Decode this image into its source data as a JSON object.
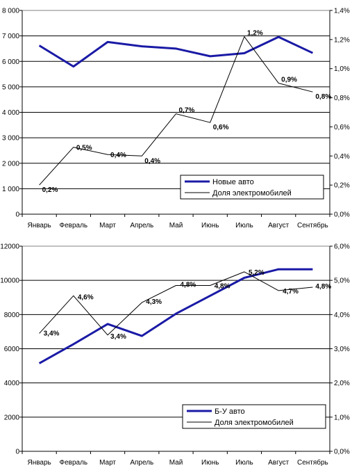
{
  "chart_data": [
    {
      "type": "line",
      "categories": [
        "Январь",
        "Февраль",
        "Март",
        "Апрель",
        "Май",
        "Июнь",
        "Июль",
        "Август",
        "Сентябрь"
      ],
      "ylim_left": [
        0,
        8000
      ],
      "left_ticks": [
        "0",
        "1 000",
        "2 000",
        "3 000",
        "4 000",
        "5 000",
        "6 000",
        "7 000",
        "8 000"
      ],
      "ylim_right": [
        0,
        1.4
      ],
      "right_ticks": [
        "0,0%",
        "0,2%",
        "0,4%",
        "0,6%",
        "0,8%",
        "1,0%",
        "1,2%",
        "1,4%"
      ],
      "grid": true,
      "legend_position": "bottom-right",
      "series": [
        {
          "name": "Новые авто",
          "axis": "left",
          "color": "#1a1aa6",
          "values": [
            6620,
            5800,
            6760,
            6590,
            6500,
            6200,
            6320,
            6960,
            6330
          ]
        },
        {
          "name": "Доля электромобилей",
          "axis": "right",
          "color": "#000000",
          "values": [
            0.2,
            0.46,
            0.41,
            0.4,
            0.69,
            0.63,
            1.22,
            0.9,
            0.84
          ],
          "labels": [
            "0,2%",
            "0,5%",
            "0,4%",
            "0,4%",
            "0,7%",
            "0,6%",
            "1,2%",
            "0,9%",
            "0,8%"
          ]
        }
      ]
    },
    {
      "type": "line",
      "categories": [
        "Январь",
        "Февраль",
        "Март",
        "Апрель",
        "Май",
        "Июнь",
        "Июль",
        "Август",
        "Сентябрь"
      ],
      "ylim_left": [
        0,
        12000
      ],
      "left_ticks": [
        "0",
        "2000",
        "4000",
        "6000",
        "8000",
        "10000",
        "12000"
      ],
      "ylim_right": [
        0,
        6.0
      ],
      "right_ticks": [
        "0,0%",
        "1,0%",
        "2,0%",
        "3,0%",
        "4,0%",
        "5,0%",
        "6,0%"
      ],
      "grid": true,
      "legend_position": "bottom-right",
      "series": [
        {
          "name": "Б-У авто",
          "axis": "left",
          "color": "#1a1aa6",
          "values": [
            5150,
            6270,
            7450,
            6750,
            8050,
            9100,
            10150,
            10650,
            10650
          ]
        },
        {
          "name": "Доля электромобилей",
          "axis": "right",
          "color": "#000000",
          "values": [
            3.45,
            4.55,
            3.4,
            4.35,
            4.85,
            4.85,
            5.25,
            4.7,
            4.8
          ],
          "labels": [
            "3,4%",
            "4,6%",
            "3,4%",
            "4,3%",
            "4,8%",
            "4,8%",
            "5,2%",
            "4,7%",
            "4,8%"
          ]
        }
      ]
    }
  ]
}
